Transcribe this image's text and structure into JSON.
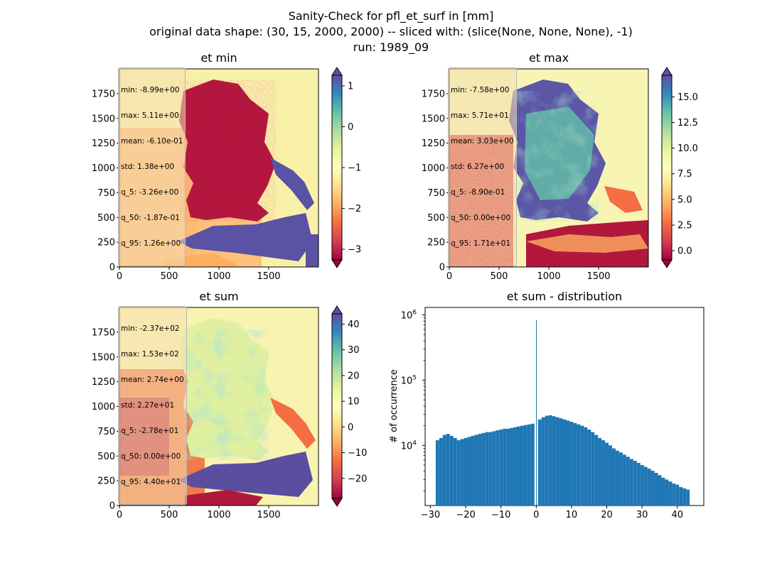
{
  "figure": {
    "suptitle_lines": [
      "Sanity-Check for pfl_et_surf in [mm]",
      "original data shape: (30, 15, 2000, 2000) -- sliced with: (slice(None, None, None), -1)",
      "run: 1989_09"
    ]
  },
  "panels": {
    "et_min": {
      "title": "et min",
      "stats": [
        "min: -8.99e+00",
        "max: 5.11e+00",
        "mean: -6.10e-01",
        "std: 1.38e+00",
        "q_5: -3.26e+00",
        "q_50: -1.87e-01",
        "q_95: 1.26e+00"
      ],
      "x_ticks": [
        "0",
        "500",
        "1000",
        "1500"
      ],
      "y_ticks": [
        "0",
        "250",
        "500",
        "750",
        "1000",
        "1250",
        "1500",
        "1750"
      ],
      "colorbar_ticks": [
        "1",
        "0",
        "−1",
        "−2",
        "−3"
      ],
      "colorbar_values": [
        1,
        0,
        -1,
        -2,
        -3
      ],
      "colorbar_range": [
        -3.26,
        1.26
      ]
    },
    "et_max": {
      "title": "et max",
      "stats": [
        "min: -7.58e+00",
        "max: 5.71e+01",
        "mean: 3.03e+00",
        "std: 6.27e+00",
        "q_5: -8.90e-01",
        "q_50: 0.00e+00",
        "q_95: 1.71e+01"
      ],
      "x_ticks": [
        "0",
        "500",
        "1000",
        "1500"
      ],
      "y_ticks": [
        "0",
        "250",
        "500",
        "750",
        "1000",
        "1250",
        "1500",
        "1750"
      ],
      "colorbar_ticks": [
        "15.0",
        "12.5",
        "10.0",
        "7.5",
        "5.0",
        "2.5",
        "0.0"
      ],
      "colorbar_values": [
        15,
        12.5,
        10,
        7.5,
        5,
        2.5,
        0
      ],
      "colorbar_range": [
        -0.89,
        17.1
      ]
    },
    "et_sum": {
      "title": "et sum",
      "stats": [
        "min: -2.37e+02",
        "max: 1.53e+02",
        "mean: 2.74e+00",
        "std: 2.27e+01",
        "q_5: -2.78e+01",
        "q_50: 0.00e+00",
        "q_95: 4.40e+01"
      ],
      "x_ticks": [
        "0",
        "500",
        "1000",
        "1500"
      ],
      "y_ticks": [
        "0",
        "250",
        "500",
        "750",
        "1000",
        "1250",
        "1500",
        "1750"
      ],
      "colorbar_ticks": [
        "40",
        "30",
        "20",
        "10",
        "0",
        "−10",
        "−20"
      ],
      "colorbar_values": [
        40,
        30,
        20,
        10,
        0,
        -10,
        -20
      ],
      "colorbar_range": [
        -27.8,
        44.0
      ]
    }
  },
  "histogram": {
    "title": "et sum - distribution",
    "ylabel": "# of occurrence",
    "x_ticks": [
      "−30",
      "−20",
      "−10",
      "0",
      "10",
      "20",
      "30",
      "40"
    ],
    "y_ticks": [
      "10^4",
      "10^5",
      "10^6"
    ]
  },
  "colors": {
    "bars": "#1f77b4",
    "axes": "#000000"
  },
  "chart_data": [
    {
      "type": "heatmap",
      "title": "et min",
      "colormap": "Spectral",
      "xlim": [
        0,
        2000
      ],
      "ylim": [
        0,
        2000
      ],
      "clim": [
        -3.26,
        1.26
      ]
    },
    {
      "type": "heatmap",
      "title": "et max",
      "colormap": "Spectral",
      "xlim": [
        0,
        2000
      ],
      "ylim": [
        0,
        2000
      ],
      "clim": [
        -0.89,
        17.1
      ]
    },
    {
      "type": "heatmap",
      "title": "et sum",
      "colormap": "Spectral",
      "xlim": [
        0,
        2000
      ],
      "ylim": [
        0,
        2000
      ],
      "clim": [
        -27.8,
        44.0
      ]
    },
    {
      "type": "bar",
      "title": "et sum - distribution",
      "ylabel": "# of occurrence",
      "yscale": "log",
      "xlim": [
        -31.5,
        47.5
      ],
      "ylim": [
        1200,
        1300000
      ],
      "x": [
        -28,
        -27,
        -26,
        -25,
        -24,
        -23,
        -22,
        -21,
        -20,
        -19,
        -18,
        -17,
        -16,
        -15,
        -14,
        -13,
        -12,
        -11,
        -10,
        -9,
        -8,
        -7,
        -6,
        -5,
        -4,
        -3,
        -2,
        -1,
        0,
        1,
        2,
        3,
        4,
        5,
        6,
        7,
        8,
        9,
        10,
        11,
        12,
        13,
        14,
        15,
        16,
        17,
        18,
        19,
        20,
        21,
        22,
        23,
        24,
        25,
        26,
        27,
        28,
        29,
        30,
        31,
        32,
        33,
        34,
        35,
        36,
        37,
        38,
        39,
        40,
        41,
        42,
        43
      ],
      "values": [
        12000,
        13000,
        14500,
        15000,
        14000,
        13000,
        12000,
        12500,
        13000,
        13500,
        14000,
        14500,
        15000,
        15500,
        16000,
        16000,
        16500,
        17000,
        17500,
        18000,
        18000,
        18500,
        19000,
        19500,
        20000,
        20500,
        21000,
        21500,
        830000,
        25000,
        27000,
        28500,
        29000,
        28000,
        27000,
        26000,
        25000,
        24000,
        23000,
        22000,
        21000,
        20000,
        19000,
        17500,
        16000,
        14500,
        13000,
        12000,
        11000,
        10000,
        9000,
        8300,
        7800,
        7200,
        6700,
        6200,
        5800,
        5400,
        5000,
        4700,
        4400,
        4100,
        3800,
        3500,
        3200,
        3000,
        2800,
        2600,
        2500,
        2300,
        2200,
        2100
      ]
    }
  ]
}
